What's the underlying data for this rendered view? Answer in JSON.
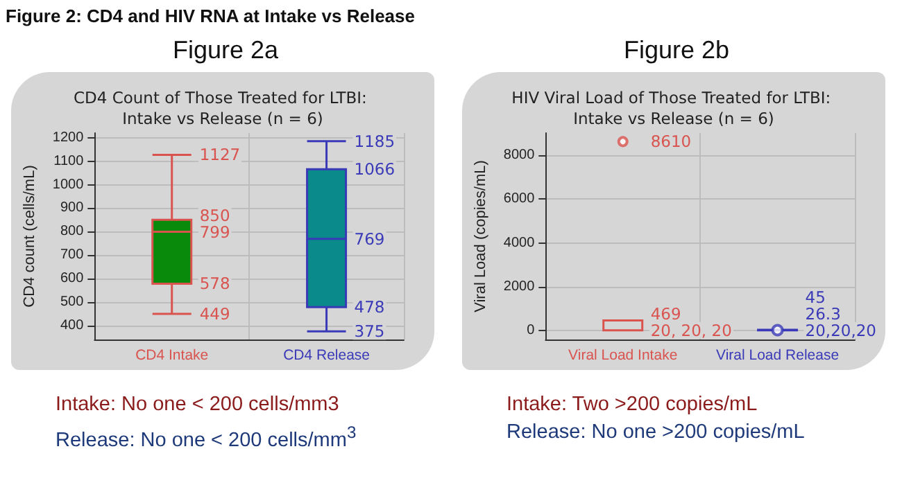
{
  "chart_data": [
    {
      "type": "box",
      "subtitle": "Figure 2a",
      "title": "CD4 Count of Those Treated for LTBI: Intake vs Release (n = 6)",
      "ylabel": "CD4 count (cells/mL)",
      "categories": [
        "CD4 Intake",
        "CD4 Release"
      ],
      "colors": [
        "#0a8a0a",
        "#0a8a8a"
      ],
      "series": [
        {
          "color": "#d9534f",
          "boxes": [
            {
              "low": 449,
              "q1": 578,
              "median": 799,
              "q3": 850,
              "high": 1127
            },
            null
          ],
          "value_labels": [
            [
              "1127",
              "850",
              "799",
              "578",
              "449"
            ],
            null
          ]
        },
        {
          "color": "#3a3ab8",
          "boxes": [
            null,
            {
              "low": 375,
              "q1": 478,
              "median": 769,
              "q3": 1066,
              "high": 1185
            }
          ],
          "value_labels": [
            null,
            [
              "1185",
              "1066",
              "769",
              "478",
              "375"
            ]
          ]
        }
      ],
      "ylim": [
        340,
        1220
      ],
      "yticks": [
        400,
        500,
        600,
        700,
        800,
        900,
        1000,
        1100,
        1200
      ],
      "grid": true,
      "annotations": [
        "Figure 2: CD4 and HIV RNA at Intake vs Release",
        "Intake: No one < 200 cells/mm3",
        "Release: No one < 200 cells/mm$^{3}$"
      ]
    },
    {
      "type": "box",
      "subtitle": "Figure 2b",
      "title": "HIV Viral Load of Those Treated for LTBI: Intake vs Release (n = 6)",
      "ylabel": "Viral Load (copies/mL)",
      "categories": [
        "Viral Load Intake",
        "Viral Load Release"
      ],
      "series": [
        {
          "color": "#d9534f",
          "boxes": [
            {
              "low": 20,
              "q1": 20,
              "median": 20,
              "q3": 469,
              "high": 469,
              "outliers": [
                8610
              ]
            },
            null
          ],
          "value_labels": [
            [
              "8610",
              "469",
              "20, 20, 20"
            ],
            null
          ]
        },
        {
          "color": "#3a3ab8",
          "boxes": [
            null,
            {
              "low": 20,
              "q1": 20,
              "median": 20,
              "q3": 45,
              "high": 45,
              "mean": 26.3
            }
          ],
          "value_labels": [
            null,
            [
              "45",
              "26.3",
              "20,20,20"
            ]
          ]
        }
      ],
      "ylim": [
        -400,
        9000
      ],
      "yticks": [
        0,
        2000,
        4000,
        6000,
        8000
      ],
      "grid": true,
      "annotations": [
        "Intake: Two >200 copies/mL",
        "Release: No one >200 copies/mL"
      ]
    }
  ]
}
